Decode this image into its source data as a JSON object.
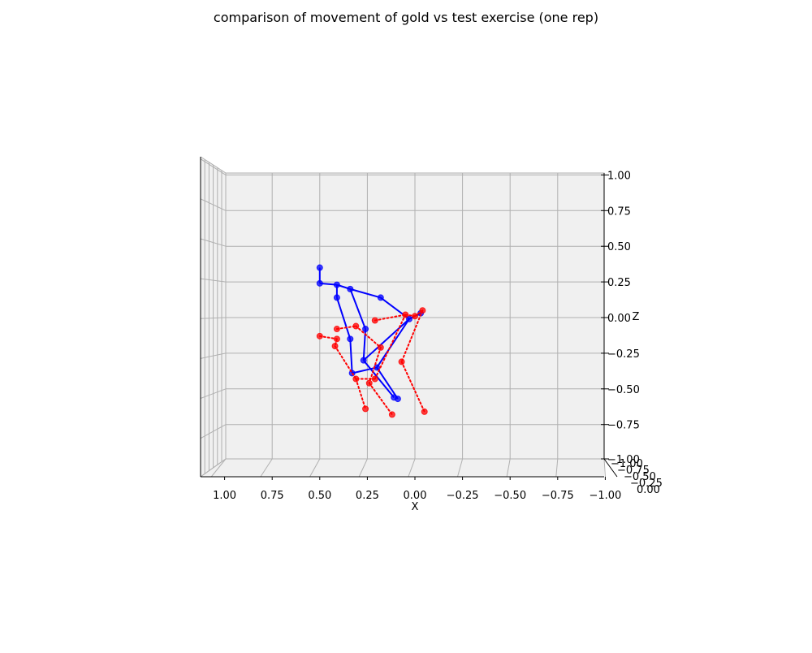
{
  "chart_data": {
    "type": "scatter",
    "title": "comparison of movement of gold vs test exercise (one rep)",
    "xlabel": "X",
    "ylabel": "",
    "zlabel": "Z",
    "xlim": [
      1.0,
      -1.0
    ],
    "zlim": [
      -1.0,
      1.0
    ],
    "x_tick_labels": [
      "1.00",
      "0.75",
      "0.50",
      "0.25",
      "0.00",
      "−0.25",
      "−0.50",
      "−0.75",
      "−1.00"
    ],
    "z_tick_labels": [
      "1.00",
      "0.75",
      "0.50",
      "0.25",
      "0.00",
      "−0.25",
      "−0.50",
      "−0.75",
      "−1.00"
    ],
    "y_tick_labels_overlapping": [
      "−1.00",
      "−0.75",
      "−0.50",
      "−0.25",
      "0.00"
    ],
    "grid": true,
    "colors": {
      "gold": "#0000ff",
      "test": "#ff0000",
      "pane": "#f0f0f0",
      "grid": "#b0b0b0"
    },
    "series": [
      {
        "style": "solid",
        "color": "#0000ff",
        "points": [
          {
            "x": 0.5,
            "z": 0.35
          },
          {
            "x": 0.5,
            "z": 0.24
          },
          {
            "x": 0.41,
            "z": 0.23
          },
          {
            "x": 0.41,
            "z": 0.14
          },
          {
            "x": 0.34,
            "z": 0.2
          },
          {
            "x": 0.18,
            "z": 0.14
          },
          {
            "x": 0.03,
            "z": -0.01
          },
          {
            "x": -0.03,
            "z": 0.03
          },
          {
            "x": 0.26,
            "z": -0.08
          },
          {
            "x": 0.34,
            "z": -0.15
          },
          {
            "x": 0.33,
            "z": -0.39
          },
          {
            "x": 0.27,
            "z": -0.3
          },
          {
            "x": 0.2,
            "z": -0.35
          },
          {
            "x": 0.11,
            "z": -0.56
          },
          {
            "x": 0.09,
            "z": -0.57
          }
        ],
        "segments": [
          [
            0,
            1
          ],
          [
            1,
            2
          ],
          [
            2,
            3
          ],
          [
            2,
            4
          ],
          [
            4,
            5
          ],
          [
            5,
            6
          ],
          [
            6,
            7
          ],
          [
            4,
            8
          ],
          [
            8,
            11
          ],
          [
            6,
            11
          ],
          [
            11,
            13
          ],
          [
            3,
            9
          ],
          [
            9,
            10
          ],
          [
            10,
            12
          ],
          [
            12,
            6
          ],
          [
            12,
            14
          ]
        ]
      },
      {
        "style": "dotted",
        "color": "#ff0000",
        "points": [
          {
            "x": 0.5,
            "z": -0.13
          },
          {
            "x": 0.41,
            "z": -0.08
          },
          {
            "x": 0.41,
            "z": -0.15
          },
          {
            "x": 0.42,
            "z": -0.2
          },
          {
            "x": 0.31,
            "z": -0.06
          },
          {
            "x": 0.21,
            "z": -0.02
          },
          {
            "x": 0.05,
            "z": 0.02
          },
          {
            "x": 0.0,
            "z": 0.01
          },
          {
            "x": -0.04,
            "z": 0.05
          },
          {
            "x": 0.18,
            "z": -0.21
          },
          {
            "x": 0.31,
            "z": -0.43
          },
          {
            "x": 0.26,
            "z": -0.64
          },
          {
            "x": 0.21,
            "z": -0.43
          },
          {
            "x": 0.24,
            "z": -0.46
          },
          {
            "x": 0.12,
            "z": -0.68
          },
          {
            "x": 0.07,
            "z": -0.31
          },
          {
            "x": -0.05,
            "z": -0.66
          }
        ],
        "segments": [
          [
            0,
            2
          ],
          [
            2,
            3
          ],
          [
            3,
            10
          ],
          [
            10,
            11
          ],
          [
            1,
            4
          ],
          [
            4,
            9
          ],
          [
            9,
            13
          ],
          [
            13,
            14
          ],
          [
            5,
            6
          ],
          [
            6,
            7
          ],
          [
            7,
            8
          ],
          [
            8,
            15
          ],
          [
            15,
            16
          ],
          [
            6,
            12
          ],
          [
            12,
            10
          ]
        ]
      }
    ]
  }
}
